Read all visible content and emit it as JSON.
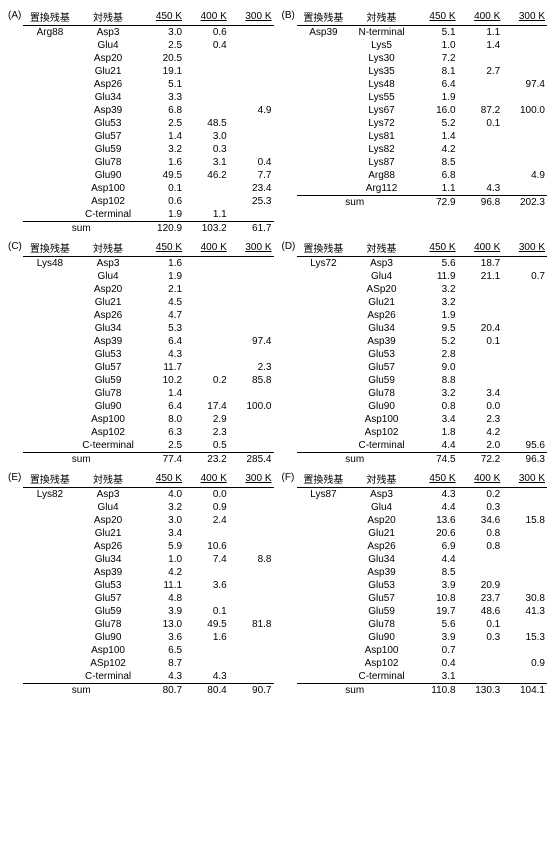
{
  "headers": {
    "sub": "置換残基",
    "pair": "対残基",
    "t450": "450 K",
    "t400": "400 K",
    "t300": "300 K",
    "sum": "sum"
  },
  "panels": [
    {
      "label": "(A)",
      "sub": "Arg88",
      "rows": [
        {
          "pair": "Asp3",
          "v": [
            "3.0",
            "0.6",
            ""
          ]
        },
        {
          "pair": "Glu4",
          "v": [
            "2.5",
            "0.4",
            ""
          ]
        },
        {
          "pair": "Asp20",
          "v": [
            "20.5",
            "",
            ""
          ]
        },
        {
          "pair": "Glu21",
          "v": [
            "19.1",
            "",
            ""
          ]
        },
        {
          "pair": "Asp26",
          "v": [
            "5.1",
            "",
            ""
          ]
        },
        {
          "pair": "Glu34",
          "v": [
            "3.3",
            "",
            ""
          ]
        },
        {
          "pair": "Asp39",
          "v": [
            "6.8",
            "",
            "4.9"
          ]
        },
        {
          "pair": "Glu53",
          "v": [
            "2.5",
            "48.5",
            ""
          ]
        },
        {
          "pair": "Glu57",
          "v": [
            "1.4",
            "3.0",
            ""
          ]
        },
        {
          "pair": "Glu59",
          "v": [
            "3.2",
            "0.3",
            ""
          ]
        },
        {
          "pair": "Glu78",
          "v": [
            "1.6",
            "3.1",
            "0.4"
          ]
        },
        {
          "pair": "Glu90",
          "v": [
            "49.5",
            "46.2",
            "7.7"
          ]
        },
        {
          "pair": "Asp100",
          "v": [
            "0.1",
            "",
            "23.4"
          ]
        },
        {
          "pair": "Asp102",
          "v": [
            "0.6",
            "",
            "25.3"
          ]
        },
        {
          "pair": "C-terminal",
          "v": [
            "1.9",
            "1.1",
            ""
          ]
        }
      ],
      "sum": [
        "120.9",
        "103.2",
        "61.7"
      ]
    },
    {
      "label": "(B)",
      "sub": "Asp39",
      "rows": [
        {
          "pair": "N-terminal",
          "v": [
            "5.1",
            "1.1",
            ""
          ]
        },
        {
          "pair": "Lys5",
          "v": [
            "1.0",
            "1.4",
            ""
          ]
        },
        {
          "pair": "Lys30",
          "v": [
            "7.2",
            "",
            ""
          ]
        },
        {
          "pair": "Lys35",
          "v": [
            "8.1",
            "2.7",
            ""
          ]
        },
        {
          "pair": "Lys48",
          "v": [
            "6.4",
            "",
            "97.4"
          ]
        },
        {
          "pair": "Lys55",
          "v": [
            "1.9",
            "",
            ""
          ]
        },
        {
          "pair": "Lys67",
          "v": [
            "16.0",
            "87.2",
            "100.0"
          ]
        },
        {
          "pair": "Lys72",
          "v": [
            "5.2",
            "0.1",
            ""
          ]
        },
        {
          "pair": "Lys81",
          "v": [
            "1.4",
            "",
            ""
          ]
        },
        {
          "pair": "Lys82",
          "v": [
            "4.2",
            "",
            ""
          ]
        },
        {
          "pair": "Lys87",
          "v": [
            "8.5",
            "",
            ""
          ]
        },
        {
          "pair": "Arg88",
          "v": [
            "6.8",
            "",
            "4.9"
          ]
        },
        {
          "pair": "Arg112",
          "v": [
            "1.1",
            "4.3",
            ""
          ]
        }
      ],
      "sum": [
        "72.9",
        "96.8",
        "202.3"
      ]
    },
    {
      "label": "(C)",
      "sub": "Lys48",
      "rows": [
        {
          "pair": "Asp3",
          "v": [
            "1.6",
            "",
            ""
          ]
        },
        {
          "pair": "Glu4",
          "v": [
            "1.9",
            "",
            ""
          ]
        },
        {
          "pair": "Asp20",
          "v": [
            "2.1",
            "",
            ""
          ]
        },
        {
          "pair": "Glu21",
          "v": [
            "4.5",
            "",
            ""
          ]
        },
        {
          "pair": "Asp26",
          "v": [
            "4.7",
            "",
            ""
          ]
        },
        {
          "pair": "Glu34",
          "v": [
            "5.3",
            "",
            ""
          ]
        },
        {
          "pair": "Asp39",
          "v": [
            "6.4",
            "",
            "97.4"
          ]
        },
        {
          "pair": "Glu53",
          "v": [
            "4.3",
            "",
            ""
          ]
        },
        {
          "pair": "Glu57",
          "v": [
            "11.7",
            "",
            "2.3"
          ]
        },
        {
          "pair": "Glu59",
          "v": [
            "10.2",
            "0.2",
            "85.8"
          ]
        },
        {
          "pair": "Glu78",
          "v": [
            "1.4",
            "",
            ""
          ]
        },
        {
          "pair": "Glu90",
          "v": [
            "6.4",
            "17.4",
            "100.0"
          ]
        },
        {
          "pair": "Asp100",
          "v": [
            "8.0",
            "2.9",
            ""
          ]
        },
        {
          "pair": "Asp102",
          "v": [
            "6.3",
            "2.3",
            ""
          ]
        },
        {
          "pair": "C-teerminal",
          "v": [
            "2.5",
            "0.5",
            ""
          ]
        }
      ],
      "sum": [
        "77.4",
        "23.2",
        "285.4"
      ]
    },
    {
      "label": "(D)",
      "sub": "Lys72",
      "rows": [
        {
          "pair": "Asp3",
          "v": [
            "5.6",
            "18.7",
            ""
          ]
        },
        {
          "pair": "Glu4",
          "v": [
            "11.9",
            "21.1",
            "0.7"
          ]
        },
        {
          "pair": "ASp20",
          "v": [
            "3.2",
            "",
            ""
          ]
        },
        {
          "pair": "Glu21",
          "v": [
            "3.2",
            "",
            ""
          ]
        },
        {
          "pair": "Asp26",
          "v": [
            "1.9",
            "",
            ""
          ]
        },
        {
          "pair": "Glu34",
          "v": [
            "9.5",
            "20.4",
            ""
          ]
        },
        {
          "pair": "Asp39",
          "v": [
            "5.2",
            "0.1",
            ""
          ]
        },
        {
          "pair": "Glu53",
          "v": [
            "2.8",
            "",
            ""
          ]
        },
        {
          "pair": "Glu57",
          "v": [
            "9.0",
            "",
            ""
          ]
        },
        {
          "pair": "Glu59",
          "v": [
            "8.8",
            "",
            ""
          ]
        },
        {
          "pair": "Glu78",
          "v": [
            "3.2",
            "3.4",
            ""
          ]
        },
        {
          "pair": "Glu90",
          "v": [
            "0.8",
            "0.0",
            ""
          ]
        },
        {
          "pair": "Asp100",
          "v": [
            "3.4",
            "2.3",
            ""
          ]
        },
        {
          "pair": "Asp102",
          "v": [
            "1.8",
            "4.2",
            ""
          ]
        },
        {
          "pair": "C-terminal",
          "v": [
            "4.4",
            "2.0",
            "95.6"
          ]
        }
      ],
      "sum": [
        "74.5",
        "72.2",
        "96.3"
      ]
    },
    {
      "label": "(E)",
      "sub": "Lys82",
      "rows": [
        {
          "pair": "Asp3",
          "v": [
            "4.0",
            "0.0",
            ""
          ]
        },
        {
          "pair": "Glu4",
          "v": [
            "3.2",
            "0.9",
            ""
          ]
        },
        {
          "pair": "Asp20",
          "v": [
            "3.0",
            "2.4",
            ""
          ]
        },
        {
          "pair": "Glu21",
          "v": [
            "3.4",
            "",
            ""
          ]
        },
        {
          "pair": "Asp26",
          "v": [
            "5.9",
            "10.6",
            ""
          ]
        },
        {
          "pair": "Glu34",
          "v": [
            "1.0",
            "7.4",
            "8.8"
          ]
        },
        {
          "pair": "Asp39",
          "v": [
            "4.2",
            "",
            ""
          ]
        },
        {
          "pair": "Glu53",
          "v": [
            "11.1",
            "3.6",
            ""
          ]
        },
        {
          "pair": "Glu57",
          "v": [
            "4.8",
            "",
            ""
          ]
        },
        {
          "pair": "Glu59",
          "v": [
            "3.9",
            "0.1",
            ""
          ]
        },
        {
          "pair": "Glu78",
          "v": [
            "13.0",
            "49.5",
            "81.8"
          ]
        },
        {
          "pair": "Glu90",
          "v": [
            "3.6",
            "1.6",
            ""
          ]
        },
        {
          "pair": "Asp100",
          "v": [
            "6.5",
            "",
            ""
          ]
        },
        {
          "pair": "ASp102",
          "v": [
            "8.7",
            "",
            ""
          ]
        },
        {
          "pair": "C-terminal",
          "v": [
            "4.3",
            "4.3",
            ""
          ]
        }
      ],
      "sum": [
        "80.7",
        "80.4",
        "90.7"
      ]
    },
    {
      "label": "(F)",
      "sub": "Lys87",
      "rows": [
        {
          "pair": "Asp3",
          "v": [
            "4.3",
            "0.2",
            ""
          ]
        },
        {
          "pair": "Glu4",
          "v": [
            "4.4",
            "0.3",
            ""
          ]
        },
        {
          "pair": "Asp20",
          "v": [
            "13.6",
            "34.6",
            "15.8"
          ]
        },
        {
          "pair": "Glu21",
          "v": [
            "20.6",
            "0.8",
            ""
          ]
        },
        {
          "pair": "Asp26",
          "v": [
            "6.9",
            "0.8",
            ""
          ]
        },
        {
          "pair": "Glu34",
          "v": [
            "4.4",
            "",
            ""
          ]
        },
        {
          "pair": "Asp39",
          "v": [
            "8.5",
            "",
            ""
          ]
        },
        {
          "pair": "Glu53",
          "v": [
            "3.9",
            "20.9",
            ""
          ]
        },
        {
          "pair": "Glu57",
          "v": [
            "10.8",
            "23.7",
            "30.8"
          ]
        },
        {
          "pair": "Glu59",
          "v": [
            "19.7",
            "48.6",
            "41.3"
          ]
        },
        {
          "pair": "Glu78",
          "v": [
            "5.6",
            "0.1",
            ""
          ]
        },
        {
          "pair": "Glu90",
          "v": [
            "3.9",
            "0.3",
            "15.3"
          ]
        },
        {
          "pair": "Asp100",
          "v": [
            "0.7",
            "",
            ""
          ]
        },
        {
          "pair": "Asp102",
          "v": [
            "0.4",
            "",
            "0.9"
          ]
        },
        {
          "pair": "C-terminal",
          "v": [
            "3.1",
            "",
            ""
          ]
        }
      ],
      "sum": [
        "110.8",
        "130.3",
        "104.1"
      ]
    }
  ]
}
